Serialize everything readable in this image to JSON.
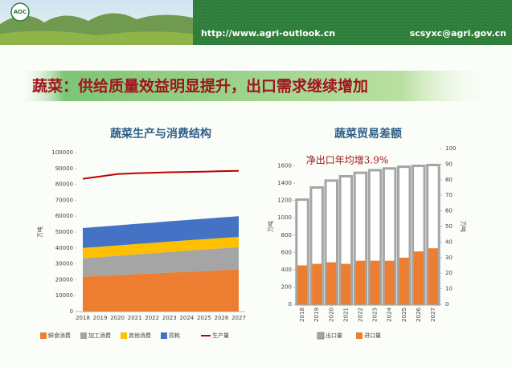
{
  "header": {
    "logo": "AOC",
    "url": "http://www.agri-outlook.cn",
    "email": "scsyxc@agri.gov.cn"
  },
  "slide_title": "蔬菜：供给质量效益明显提升，出口需求继续增加",
  "chart_data": [
    {
      "type": "area",
      "title": "蔬菜生产与消费结构",
      "y_label": "万吨",
      "categories": [
        "2018",
        "2019",
        "2020",
        "2021",
        "2022",
        "2023",
        "2024",
        "2025",
        "2026",
        "2027"
      ],
      "series": [
        {
          "name": "鲜食消费",
          "color": "#ed7d31",
          "values": [
            22000,
            22500,
            23000,
            23500,
            24000,
            24500,
            25000,
            25500,
            26000,
            26500
          ]
        },
        {
          "name": "加工消费",
          "color": "#a5a5a5",
          "values": [
            11500,
            11800,
            12100,
            12400,
            12700,
            13000,
            13300,
            13500,
            13800,
            14000
          ]
        },
        {
          "name": "其他消费",
          "color": "#ffc000",
          "values": [
            6500,
            6500,
            6500,
            6500,
            6500,
            6500,
            6500,
            6500,
            6500,
            6500
          ]
        },
        {
          "name": "损耗",
          "color": "#4472c4",
          "values": [
            12500,
            12600,
            12600,
            12700,
            12700,
            12800,
            12800,
            12900,
            12900,
            13000
          ]
        },
        {
          "name": "生产量",
          "color": "#c00000",
          "type": "line",
          "values": [
            83500,
            85000,
            86500,
            87000,
            87300,
            87600,
            87800,
            88000,
            88300,
            88500
          ]
        }
      ],
      "ylim": [
        0,
        100000
      ],
      "yticks": [
        0,
        10000,
        20000,
        30000,
        40000,
        50000,
        60000,
        70000,
        80000,
        90000,
        100000
      ]
    },
    {
      "type": "bar",
      "title": "蔬菜贸易差额",
      "y_label": "万吨",
      "y2_label": "万吨",
      "annotation": "净出口年均增3.9%",
      "categories": [
        "2018",
        "2019",
        "2020",
        "2021",
        "2022",
        "2023",
        "2024",
        "2025",
        "2026",
        "2027"
      ],
      "series": [
        {
          "name": "出口量",
          "color": "#a5a5a5",
          "values": [
            1210,
            1350,
            1430,
            1480,
            1520,
            1550,
            1570,
            1590,
            1600,
            1610
          ]
        },
        {
          "name": "进口量",
          "color": "#ed7d31",
          "axis": "y2",
          "values": [
            25,
            26,
            27,
            26,
            28,
            28,
            28,
            30,
            34,
            36
          ]
        }
      ],
      "ylim": [
        0,
        1800
      ],
      "yticks": [
        0,
        200,
        400,
        600,
        800,
        1000,
        1200,
        1400,
        1600
      ],
      "y2lim": [
        0,
        100
      ],
      "y2ticks": [
        0,
        10,
        20,
        30,
        40,
        50,
        60,
        70,
        80,
        90,
        100
      ]
    }
  ]
}
